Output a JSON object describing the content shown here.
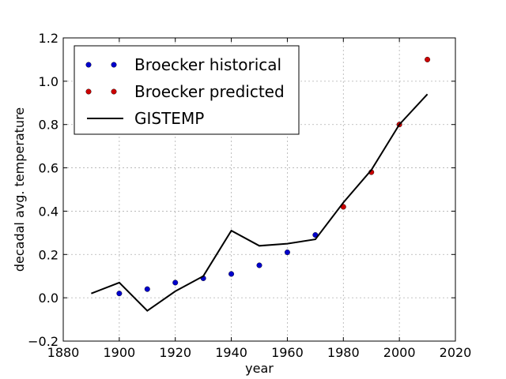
{
  "chart_data": {
    "type": "line",
    "title": "",
    "xlabel": "year",
    "ylabel": "decadal avg. temperature",
    "xlim": [
      1880,
      2020
    ],
    "ylim": [
      -0.2,
      1.2
    ],
    "x_ticks": [
      1880,
      1900,
      1920,
      1940,
      1960,
      1980,
      2000,
      2020
    ],
    "y_ticks": [
      -0.2,
      0.0,
      0.2,
      0.4,
      0.6,
      0.8,
      1.0,
      1.2
    ],
    "grid": true,
    "legend_position": "top-left",
    "series": [
      {
        "name": "Broecker historical",
        "kind": "scatter",
        "color": "#0000cc",
        "x": [
          1900,
          1910,
          1920,
          1930,
          1940,
          1950,
          1960,
          1970
        ],
        "y": [
          0.02,
          0.04,
          0.07,
          0.09,
          0.11,
          0.15,
          0.21,
          0.29
        ]
      },
      {
        "name": "Broecker predicted",
        "kind": "scatter",
        "color": "#cc0000",
        "x": [
          1980,
          1990,
          2000,
          2010
        ],
        "y": [
          0.42,
          0.58,
          0.8,
          1.1
        ]
      },
      {
        "name": "GISTEMP",
        "kind": "line",
        "color": "#000000",
        "x": [
          1890,
          1900,
          1910,
          1920,
          1930,
          1940,
          1950,
          1960,
          1970,
          1980,
          1990,
          2000,
          2010
        ],
        "y": [
          0.02,
          0.07,
          -0.06,
          0.03,
          0.1,
          0.31,
          0.24,
          0.25,
          0.27,
          0.44,
          0.59,
          0.8,
          0.94
        ]
      }
    ]
  }
}
